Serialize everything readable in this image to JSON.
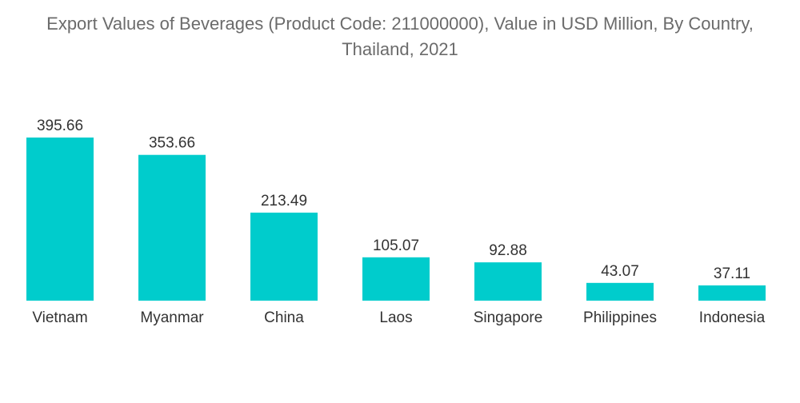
{
  "chart_data": {
    "type": "bar",
    "title_line1": "Export Values of Beverages (Product Code: 211000000), Value in USD Million, By Country,",
    "title_line2": "Thailand, 2021",
    "categories": [
      "Vietnam",
      "Myanmar",
      "China",
      "Laos",
      "Singapore",
      "Philippines",
      "Indonesia"
    ],
    "values": [
      395.66,
      353.66,
      213.49,
      105.07,
      92.88,
      43.07,
      37.11
    ],
    "value_labels": [
      "395.66",
      "353.66",
      "213.49",
      "105.07",
      "92.88",
      "43.07",
      "37.11"
    ],
    "xlabel": "",
    "ylabel": "",
    "ylim": [
      0,
      395.66
    ],
    "grid": false,
    "legend": "none",
    "bar_color": "#00cccc"
  }
}
